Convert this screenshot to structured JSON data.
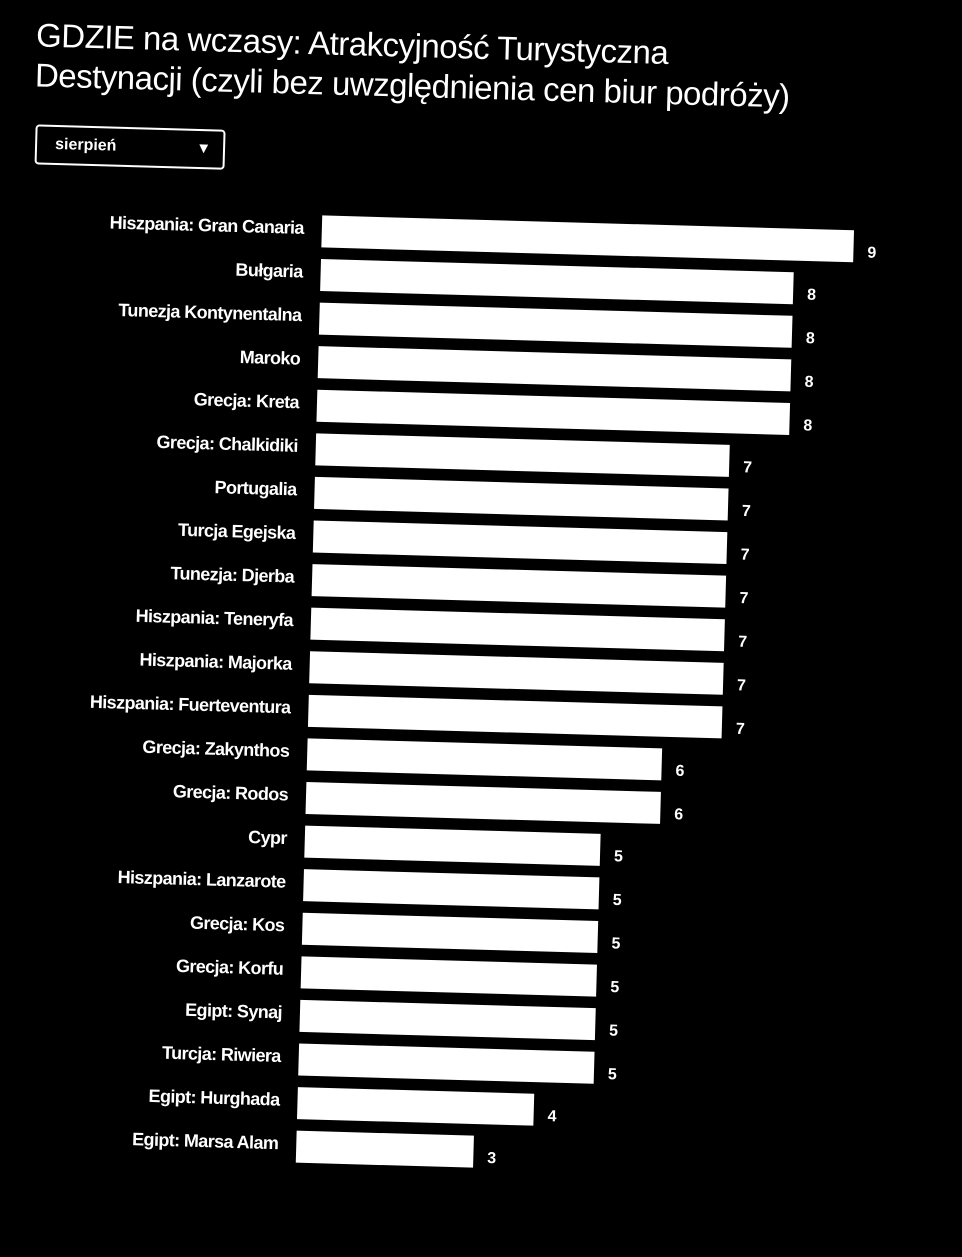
{
  "colors": {
    "background": "#000000",
    "bar": "#ffffff",
    "text": "#ffffff"
  },
  "title_line1": "GDZIE na wczasy: Atrakcyjność Turystyczna",
  "title_line2": "Destynacji (czyli bez uwzględnienia cen biur podróży)",
  "month_select": {
    "value": "sierpień",
    "icon": "triangle-down-icon"
  },
  "chart_data": {
    "type": "bar",
    "orientation": "horizontal",
    "title": "GDZIE na wczasy: Atrakcyjność Turystyczna Destynacji (czyli bez uwzględnienia cen biur podróży)",
    "categories": [
      "Hiszpania: Gran Canaria",
      "Bułgaria",
      "Tunezja Kontynentalna",
      "Maroko",
      "Grecja: Kreta",
      "Grecja: Chalkidiki",
      "Portugalia",
      "Turcja Egejska",
      "Tunezja: Djerba",
      "Hiszpania: Teneryfa",
      "Hiszpania: Majorka",
      "Hiszpania: Fuerteventura",
      "Grecja: Zakynthos",
      "Grecja: Rodos",
      "Cypr",
      "Hiszpania: Lanzarote",
      "Grecja: Kos",
      "Grecja: Korfu",
      "Egipt: Synaj",
      "Turcja: Riwiera",
      "Egipt: Hurghada",
      "Egipt: Marsa Alam"
    ],
    "values": [
      9,
      8,
      8,
      8,
      8,
      7,
      7,
      7,
      7,
      7,
      7,
      7,
      6,
      6,
      5,
      5,
      5,
      5,
      5,
      5,
      4,
      3
    ],
    "xlim": [
      0,
      9
    ],
    "grid": false,
    "legend": "none"
  }
}
